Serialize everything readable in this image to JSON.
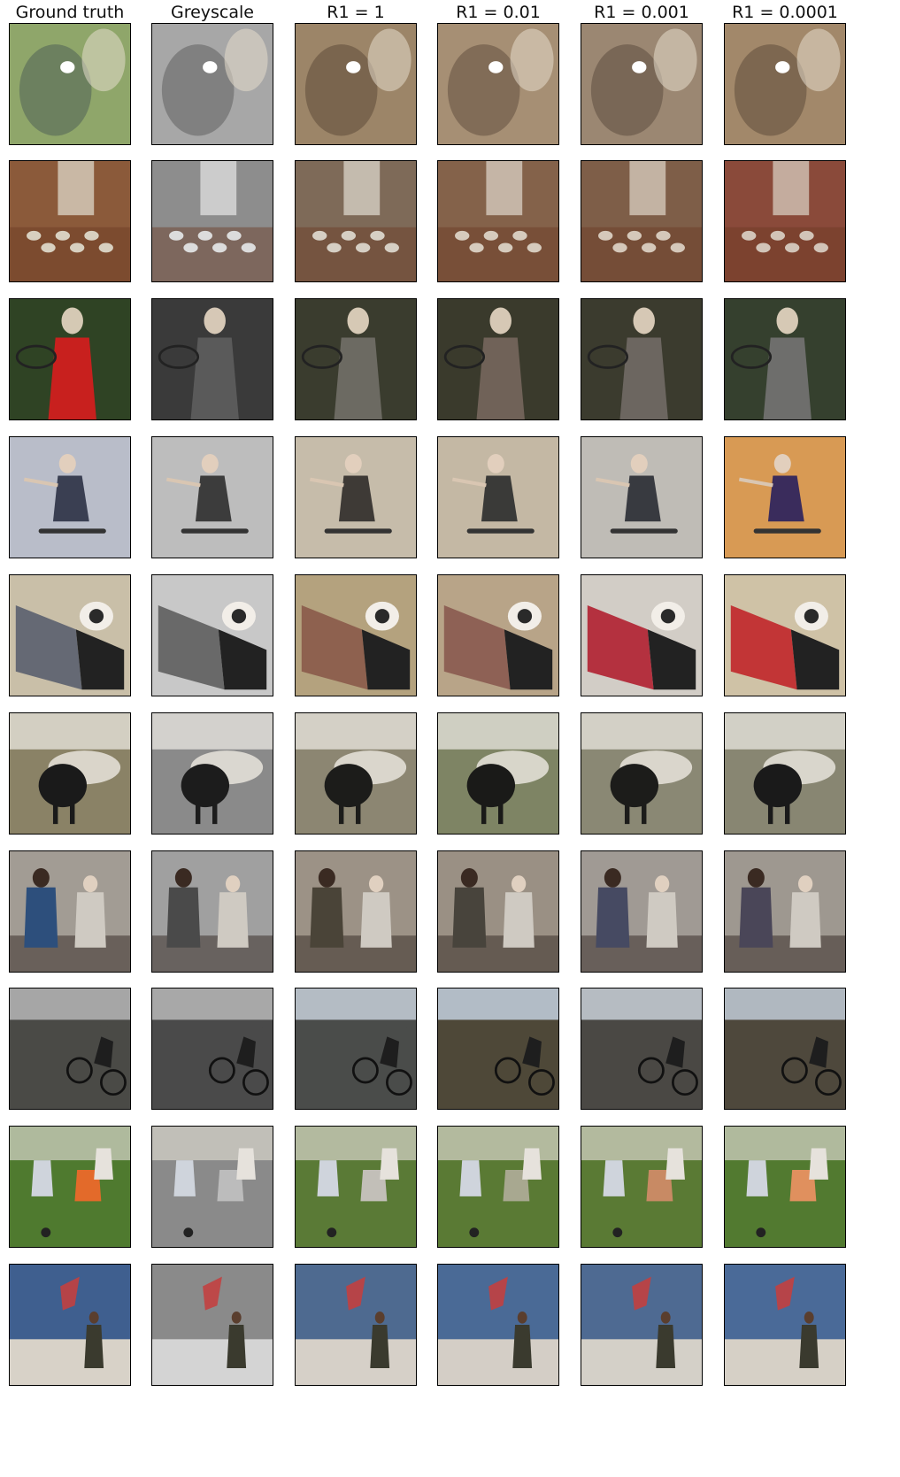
{
  "columns": [
    "Ground truth",
    "Greyscale",
    "R1 = 1",
    "R1 = 0.01",
    "R1 = 0.001",
    "R1 = 0.0001"
  ],
  "rows": [
    {
      "scene": "teddy-bear-kiss",
      "palette": [
        "#8fa66a",
        "#a7a7a7",
        "#9c8568",
        "#a68f74",
        "#9b8772",
        "#a2886a"
      ],
      "accent": [
        "#2b3a4a",
        "#3a3a3a",
        "#3b2a20",
        "#3c2c22",
        "#3a2b22",
        "#3a2a20"
      ]
    },
    {
      "scene": "kitchen-table",
      "palette": [
        "#8b5a3a",
        "#8d8d8d",
        "#7e6a58",
        "#84624a",
        "#7e5e48",
        "#8a4a3a"
      ],
      "accent": [
        "#d8d0c0",
        "#dcdcdc",
        "#d6cfc4",
        "#d6cbbd",
        "#d5c8ba",
        "#d2c4b8"
      ]
    },
    {
      "scene": "tennis-player",
      "palette": [
        "#2f4324",
        "#3a3a3a",
        "#3a3c2e",
        "#3a3a2c",
        "#3b3b2e",
        "#35402e"
      ],
      "accent": [
        "#c8201e",
        "#5a5a5a",
        "#6c6a62",
        "#706258",
        "#6c6660",
        "#6e6e6c"
      ]
    },
    {
      "scene": "skateboarder",
      "palette": [
        "#b9bdc9",
        "#bdbdbd",
        "#c6bcaa",
        "#c4b8a4",
        "#bfbcb6",
        "#d89a54"
      ],
      "accent": [
        "#3a3f52",
        "#3c3c3c",
        "#3e3a36",
        "#3a3a38",
        "#383a40",
        "#3a2c5c"
      ]
    },
    {
      "scene": "laptop-and-dog",
      "palette": [
        "#c9bfa8",
        "#c8c8c8",
        "#b4a27e",
        "#b8a488",
        "#d2cdc6",
        "#cfc2a6"
      ],
      "accent": [
        "#5a5f6e",
        "#5e5e5e",
        "#8a5a4a",
        "#8a5a50",
        "#b02030",
        "#c0262a"
      ]
    },
    {
      "scene": "sheep-in-barn",
      "palette": [
        "#8a8266",
        "#8a8a8a",
        "#8c8672",
        "#7e8464",
        "#8a8874",
        "#888672"
      ],
      "accent": [
        "#1a1a1a",
        "#1c1c1c",
        "#1c1c1a",
        "#1a1a18",
        "#1c1c1a",
        "#1a1a1a"
      ]
    },
    {
      "scene": "living-room-gamers",
      "palette": [
        "#a29c94",
        "#a0a0a0",
        "#9c9286",
        "#9a9084",
        "#a09a94",
        "#9e9890"
      ],
      "accent": [
        "#2d4f7c",
        "#4a4a4a",
        "#4a4438",
        "#48443c",
        "#464a62",
        "#4a4658"
      ]
    },
    {
      "scene": "bmx-rider-coast",
      "palette": [
        "#4a4a46",
        "#4a4a4a",
        "#4a4c4a",
        "#4e4838",
        "#4a4844",
        "#4e483c"
      ],
      "accent": [
        "#a6a6a6",
        "#a8a8a8",
        "#b4bcc4",
        "#b2bcc6",
        "#b6bcc2",
        "#b0b8c0"
      ]
    },
    {
      "scene": "soccer-players",
      "palette": [
        "#4f7a2f",
        "#8a8a8a",
        "#5a7a36",
        "#5a7a34",
        "#5a7a34",
        "#527a30"
      ],
      "accent": [
        "#e36a2a",
        "#bcbcbc",
        "#c2bfb8",
        "#a8a890",
        "#c88a64",
        "#e0905e"
      ]
    },
    {
      "scene": "kite-on-beach",
      "palette": [
        "#3f5f8f",
        "#8a8a8a",
        "#4e6a90",
        "#4a6a96",
        "#4e6a92",
        "#4a6a98"
      ],
      "accent": [
        "#d8d2c8",
        "#d4d4d4",
        "#d6d0c8",
        "#d4cec6",
        "#d4d0c8",
        "#d6d0c6"
      ]
    }
  ]
}
